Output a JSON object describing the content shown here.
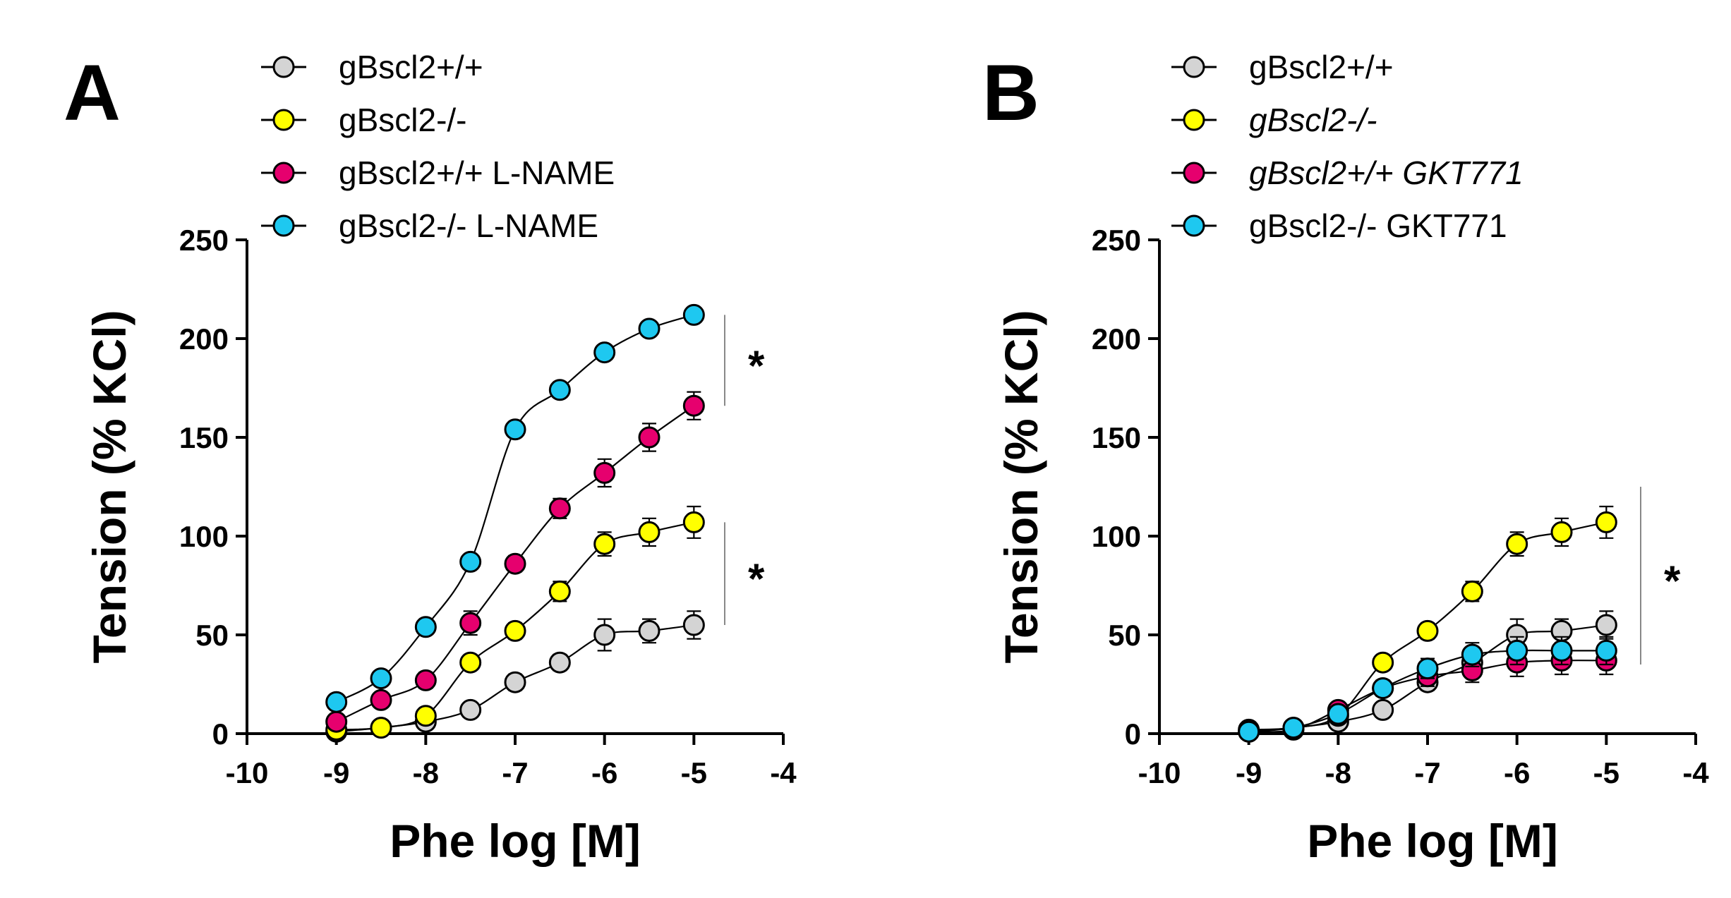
{
  "colors": {
    "wt": "#d4d4d4",
    "ko": "#ffff00",
    "wt_treated": "#e6006e",
    "ko_treated": "#1ec8f0",
    "stroke": "#000000"
  },
  "chart_data": [
    {
      "type": "line",
      "panel": "A",
      "xlabel": "Phe log [M]",
      "ylabel": "Tension (% KCl)",
      "xlim": [
        -10,
        -4
      ],
      "ylim": [
        0,
        250
      ],
      "xticks": [
        -10,
        -9,
        -8,
        -7,
        -6,
        -5,
        -4
      ],
      "yticks": [
        0,
        50,
        100,
        150,
        200,
        250
      ],
      "legend_position": "top",
      "x": [
        -9,
        -8.5,
        -8,
        -7.5,
        -7,
        -6.5,
        -6,
        -5.5,
        -5
      ],
      "series": [
        {
          "name": "gBscl2+/+",
          "italic": false,
          "color_key": "wt",
          "values": [
            1,
            3,
            6,
            12,
            26,
            36,
            50,
            52,
            55
          ],
          "errors": [
            2,
            2,
            2,
            3,
            4,
            4,
            8,
            6,
            7
          ]
        },
        {
          "name": "gBscl2-/-",
          "italic": false,
          "color_key": "ko",
          "values": [
            2,
            3,
            9,
            36,
            52,
            72,
            96,
            102,
            107
          ],
          "errors": [
            2,
            2,
            2,
            3,
            4,
            5,
            6,
            7,
            8
          ]
        },
        {
          "name": "gBscl2+/+ L-NAME",
          "italic": false,
          "color_key": "wt_treated",
          "values": [
            6,
            17,
            27,
            56,
            86,
            114,
            132,
            150,
            166
          ],
          "errors": [
            2,
            3,
            4,
            6,
            4,
            5,
            7,
            7,
            7
          ]
        },
        {
          "name": "gBscl2-/- L-NAME",
          "italic": false,
          "color_key": "ko_treated",
          "values": [
            16,
            28,
            54,
            87,
            154,
            174,
            193,
            205,
            212
          ],
          "errors": [
            2,
            2,
            3,
            3,
            3,
            3,
            3,
            3,
            3
          ]
        }
      ],
      "significance": [
        {
          "label": "*",
          "from": 166,
          "to": 212
        },
        {
          "label": "*",
          "from": 55,
          "to": 107
        }
      ]
    },
    {
      "type": "line",
      "panel": "B",
      "xlabel": "Phe log [M]",
      "ylabel": "Tension (% KCl)",
      "xlim": [
        -10,
        -4
      ],
      "ylim": [
        0,
        250
      ],
      "xticks": [
        -10,
        -9,
        -8,
        -7,
        -6,
        -5,
        -4
      ],
      "yticks": [
        0,
        50,
        100,
        150,
        200,
        250
      ],
      "legend_position": "top",
      "x": [
        -9,
        -8.5,
        -8,
        -7.5,
        -7,
        -6.5,
        -6,
        -5.5,
        -5
      ],
      "series": [
        {
          "name": "gBscl2+/+",
          "italic": false,
          "color_key": "wt",
          "values": [
            1,
            3,
            6,
            12,
            26,
            36,
            50,
            52,
            55
          ],
          "errors": [
            2,
            2,
            2,
            3,
            4,
            4,
            8,
            6,
            7
          ]
        },
        {
          "name": "gBscl2-/-",
          "italic": true,
          "color_key": "ko",
          "values": [
            2,
            3,
            9,
            36,
            52,
            72,
            96,
            102,
            107
          ],
          "errors": [
            2,
            2,
            2,
            3,
            4,
            5,
            6,
            7,
            8
          ]
        },
        {
          "name": "gBscl2+/+ GKT771",
          "italic": true,
          "color_key": "wt_treated",
          "values": [
            1,
            2,
            12,
            23,
            29,
            32,
            36,
            37,
            37
          ],
          "errors": [
            2,
            2,
            3,
            4,
            5,
            6,
            7,
            7,
            7
          ]
        },
        {
          "name": "gBscl2-/- GKT771",
          "italic": false,
          "color_key": "ko_treated",
          "values": [
            1,
            3,
            10,
            23,
            33,
            40,
            42,
            42,
            42
          ],
          "errors": [
            2,
            2,
            3,
            4,
            5,
            6,
            7,
            7,
            7
          ]
        }
      ],
      "significance": [
        {
          "label": "*",
          "from": 35,
          "to": 125
        }
      ]
    }
  ]
}
